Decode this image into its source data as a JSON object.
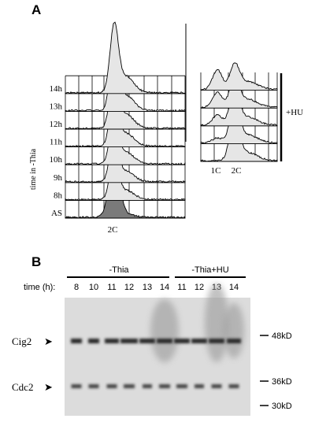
{
  "panel_a": {
    "letter": "A",
    "axis_label": "time in -Thia",
    "time_labels": [
      "14h",
      "13h",
      "12h",
      "11h",
      "10h",
      "9h",
      "8h",
      "AS"
    ],
    "peak_label_left": "2C",
    "peak_labels_right": [
      "1C",
      "2C"
    ],
    "treatment_label": "+HU"
  },
  "panel_b": {
    "letter": "B",
    "time_label": "time (h):",
    "group_thia": "-Thia",
    "group_thia_hu": "-Thia+HU",
    "lanes_thia": [
      "8",
      "10",
      "11",
      "12",
      "13",
      "14"
    ],
    "lanes_thia_hu": [
      "11",
      "12",
      "13",
      "14"
    ],
    "proteins": [
      {
        "name": "Cig2"
      },
      {
        "name": "Cdc2"
      }
    ],
    "markers": [
      "48kD",
      "36kD",
      "30kD"
    ],
    "arrow_glyph": "➤"
  },
  "colors": {
    "histogram_fill": "#e6e6e6",
    "as_fill": "#7a7a7a",
    "blot_background": "#dcdcdc",
    "band": "#2a2a2a"
  }
}
